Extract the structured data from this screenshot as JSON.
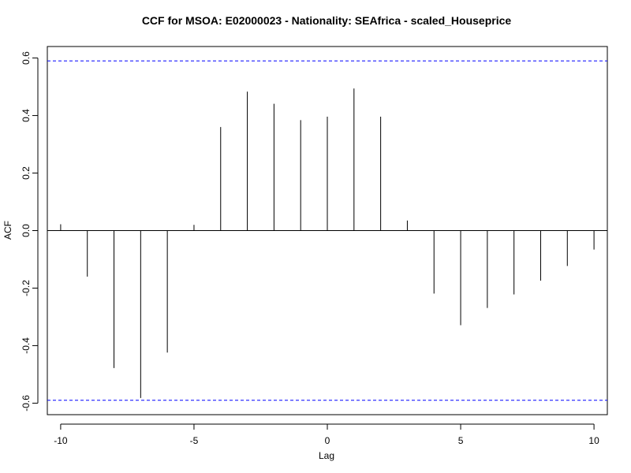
{
  "chart_data": {
    "type": "bar",
    "title": "CCF for MSOA: E02000023 - Nationality: SEAfrica - scaled_Houseprice",
    "xlabel": "Lag",
    "ylabel": "ACF",
    "x": [
      -10,
      -9,
      -8,
      -7,
      -6,
      -5,
      -4,
      -3,
      -2,
      -1,
      0,
      1,
      2,
      3,
      4,
      5,
      6,
      7,
      8,
      9,
      10
    ],
    "values": [
      0.022,
      -0.16,
      -0.478,
      -0.582,
      -0.424,
      0.02,
      0.36,
      0.483,
      0.441,
      0.384,
      0.396,
      0.494,
      0.396,
      0.035,
      -0.219,
      -0.329,
      -0.269,
      -0.222,
      -0.174,
      -0.123,
      -0.066
    ],
    "confidence_bound": 0.59,
    "xlim": [
      -10.5,
      10.5
    ],
    "ylim": [
      -0.64,
      0.64
    ],
    "x_ticks": [
      "-10",
      "-5",
      "0",
      "5",
      "10"
    ],
    "y_ticks": [
      "-0.6",
      "-0.4",
      "-0.2",
      "0.0",
      "0.2",
      "0.4",
      "0.6"
    ],
    "grid": false,
    "legend": "none",
    "colors": {
      "bars": "#000000",
      "confidence_line": "#0000ff",
      "zero_line": "#000000"
    }
  }
}
